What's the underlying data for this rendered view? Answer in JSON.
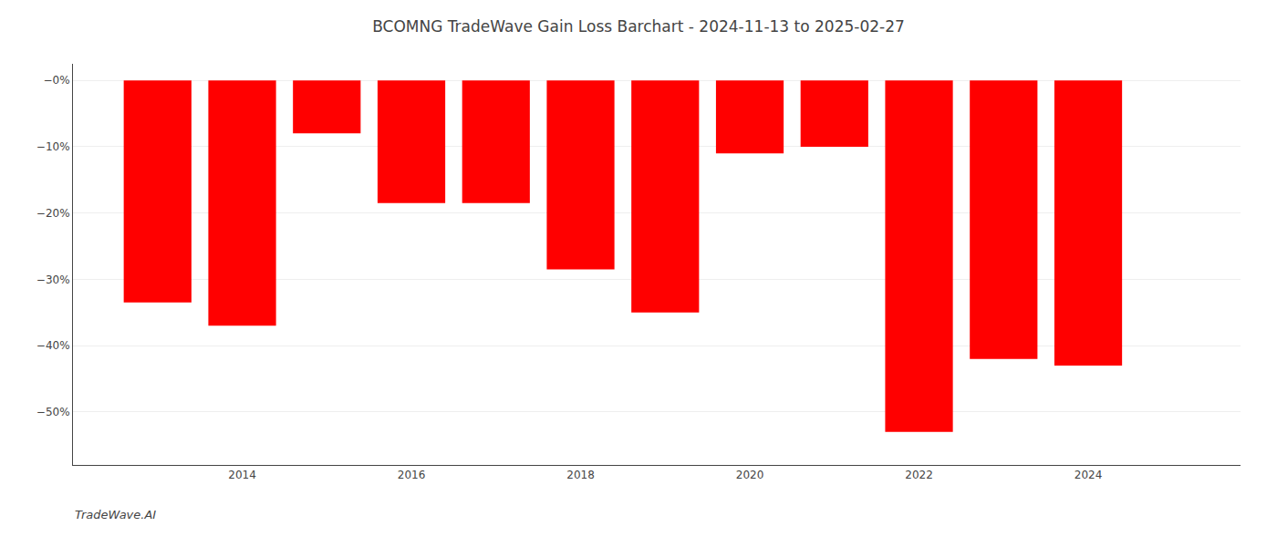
{
  "chart_data": {
    "type": "bar",
    "title": "BCOMNG TradeWave Gain Loss Barchart - 2024-11-13 to 2025-02-27",
    "x": [
      2013,
      2014,
      2015,
      2016,
      2017,
      2018,
      2019,
      2020,
      2021,
      2022,
      2023,
      2024
    ],
    "values": [
      -33.5,
      -37.0,
      -8.0,
      -18.5,
      -18.5,
      -28.5,
      -35.0,
      -11.0,
      -10.0,
      -53.0,
      -42.0,
      -43.0
    ],
    "color": "#ff0000",
    "xlim": [
      2012.0,
      2025.8
    ],
    "xticks": [
      2014,
      2016,
      2018,
      2020,
      2022,
      2024
    ],
    "ylim": [
      -58,
      2.5
    ],
    "yticks": [
      {
        "value": 0,
        "label": "−0%"
      },
      {
        "value": -10,
        "label": "−10%"
      },
      {
        "value": -20,
        "label": "−20%"
      },
      {
        "value": -30,
        "label": "−30%"
      },
      {
        "value": -40,
        "label": "−40%"
      },
      {
        "value": -50,
        "label": "−50%"
      }
    ],
    "grid": true,
    "annotations": [
      "TradeWave.AI"
    ]
  }
}
